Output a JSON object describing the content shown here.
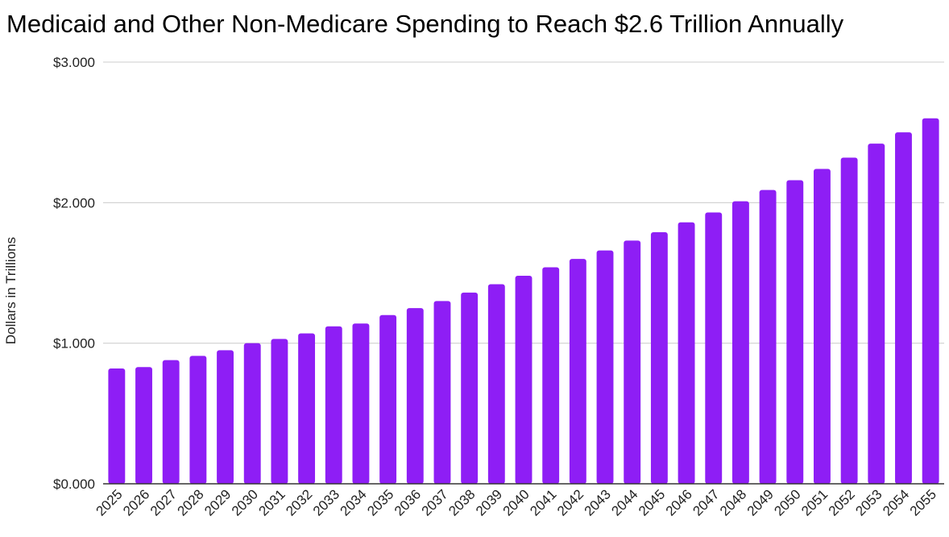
{
  "chart_data": {
    "type": "bar",
    "title": "Medicaid and Other Non-Medicare Spending to Reach $2.6 Trillion Annually",
    "xlabel": "",
    "ylabel": "Dollars in Trillions",
    "ylim": [
      0,
      3
    ],
    "y_ticks": [
      0,
      1,
      2,
      3
    ],
    "y_tick_labels": [
      "$0.000",
      "$1.000",
      "$2.000",
      "$3.000"
    ],
    "grid": true,
    "legend": "none",
    "categories": [
      "2025",
      "2026",
      "2027",
      "2028",
      "2029",
      "2030",
      "2031",
      "2032",
      "2033",
      "2034",
      "2035",
      "2036",
      "2037",
      "2038",
      "2039",
      "2040",
      "2041",
      "2042",
      "2043",
      "2044",
      "2045",
      "2046",
      "2047",
      "2048",
      "2049",
      "2050",
      "2051",
      "2052",
      "2053",
      "2054",
      "2055"
    ],
    "values": [
      0.82,
      0.83,
      0.88,
      0.91,
      0.95,
      1.0,
      1.03,
      1.07,
      1.12,
      1.14,
      1.2,
      1.25,
      1.3,
      1.36,
      1.42,
      1.48,
      1.54,
      1.6,
      1.66,
      1.73,
      1.79,
      1.86,
      1.93,
      2.01,
      2.09,
      2.16,
      2.24,
      2.32,
      2.42,
      2.5,
      2.6
    ],
    "colors": {
      "bar": "#8e1ef5",
      "grid": "#cccccc",
      "axis": "#333333"
    }
  }
}
